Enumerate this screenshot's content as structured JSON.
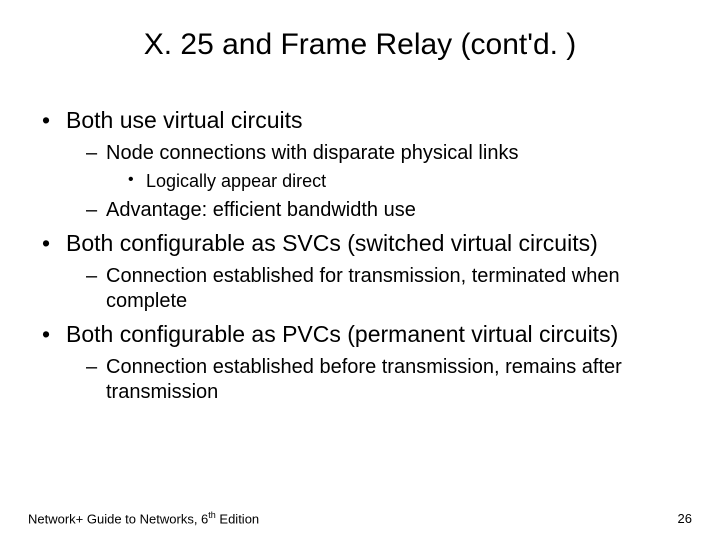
{
  "title": "X. 25 and Frame Relay (cont'd. )",
  "bullets": {
    "b1": "Both use virtual circuits",
    "b1_1": "Node connections with disparate physical links",
    "b1_1_1": "Logically appear direct",
    "b1_2": "Advantage: efficient bandwidth use",
    "b2": "Both configurable as SVCs (switched virtual circuits)",
    "b2_1": "Connection established for transmission, terminated when complete",
    "b3": "Both configurable as PVCs (permanent virtual circuits)",
    "b3_1": "Connection established before transmission, remains after transmission"
  },
  "footer": {
    "left_prefix": "Network+ Guide to Networks, 6",
    "left_ordinal": "th",
    "left_suffix": " Edition",
    "page": "26"
  }
}
